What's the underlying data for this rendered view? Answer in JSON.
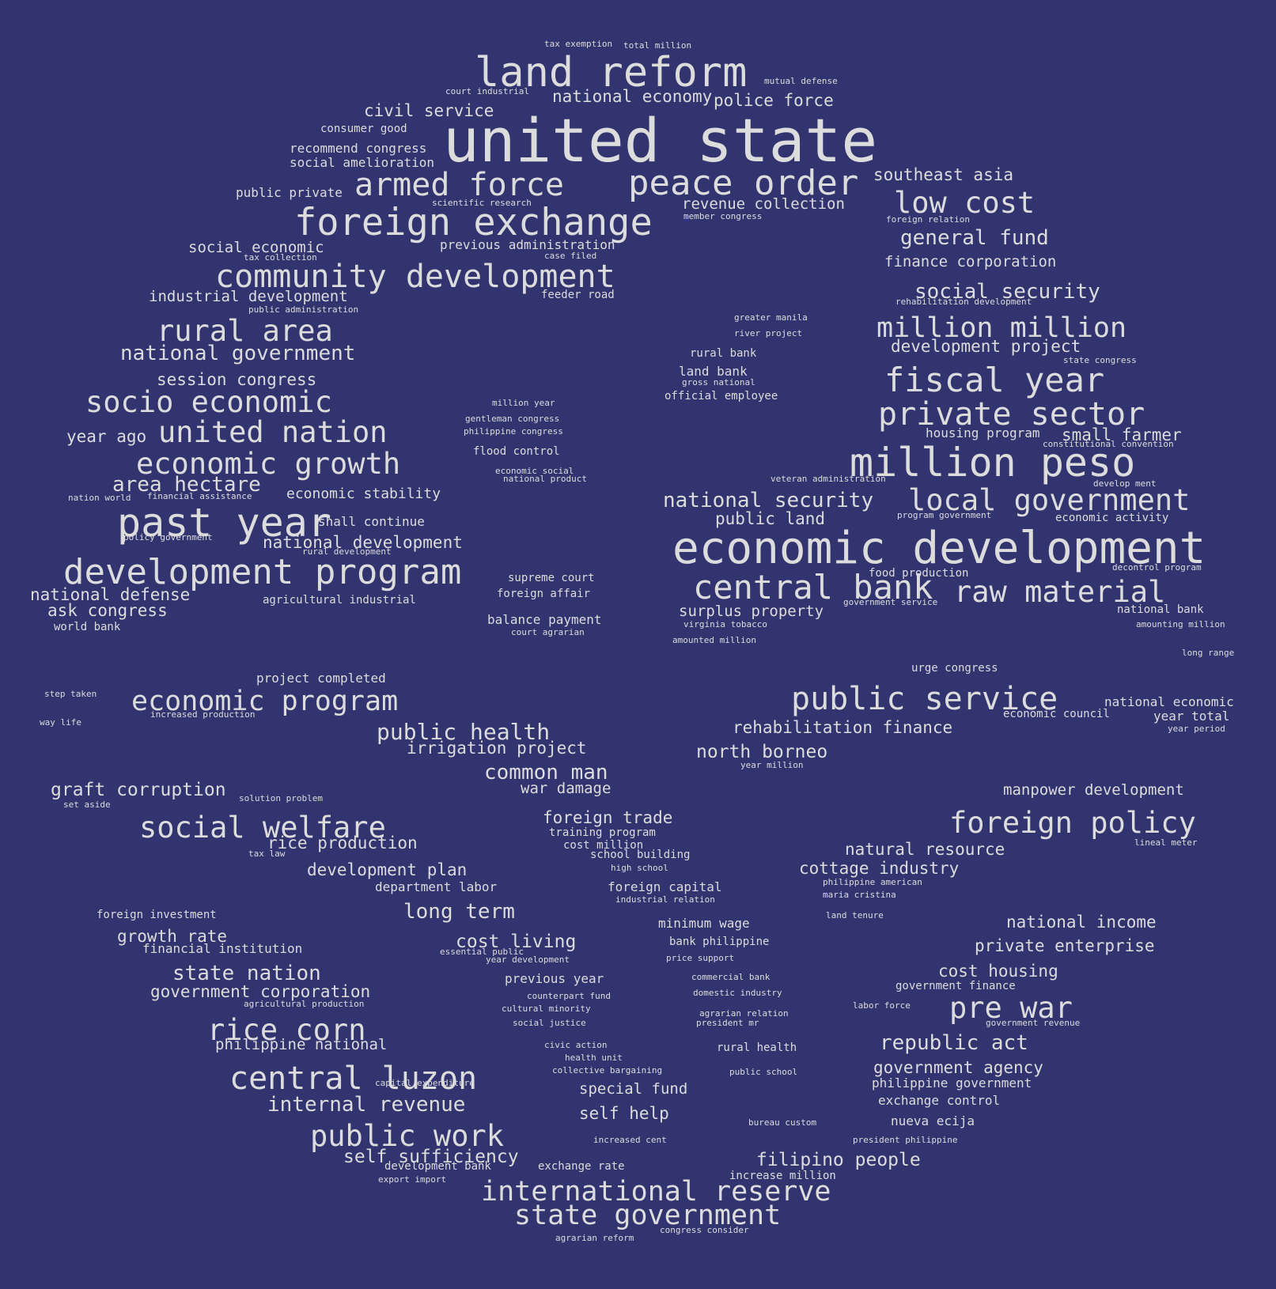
{
  "colors": {
    "background": "#323470",
    "text": "#dcdcdc"
  },
  "words": [
    "tax exemption",
    "total million",
    "land reform",
    "mutual defense",
    "court industrial",
    "national economy",
    "police force",
    "civil service",
    "united state",
    "consumer good",
    "recommend congress",
    "social amelioration",
    "southeast asia",
    "armed force",
    "peace order",
    "public private",
    "scientific research",
    "revenue collection",
    "low cost",
    "member congress",
    "foreign exchange",
    "foreign relation",
    "general fund",
    "social economic",
    "previous administration",
    "tax collection",
    "case filed",
    "finance corporation",
    "community development",
    "industrial development",
    "feeder road",
    "social security",
    "rehabilitation development",
    "public administration",
    "greater manila",
    "rural area",
    "million million",
    "river project",
    "development project",
    "national government",
    "rural bank",
    "state congress",
    "land bank",
    "session congress",
    "gross national",
    "fiscal year",
    "official employee",
    "socio economic",
    "million year",
    "private sector",
    "gentleman congress",
    "united nation",
    "year ago",
    "philippine congress",
    "housing program",
    "small farmer",
    "constitutional convention",
    "flood control",
    "economic growth",
    "million peso",
    "economic social",
    "national product",
    "veteran administration",
    "area hectare",
    "develop ment",
    "nation world",
    "financial assistance",
    "economic stability",
    "national security",
    "local government",
    "past year",
    "shall continue",
    "public land",
    "program government",
    "economic activity",
    "policy government",
    "national development",
    "rural development",
    "food production",
    "economic development",
    "development program",
    "decontrol program",
    "supreme court",
    "central bank",
    "raw material",
    "national defense",
    "foreign affair",
    "agricultural industrial",
    "government service",
    "ask congress",
    "surplus property",
    "national bank",
    "balance payment",
    "virginia tobacco",
    "amounting million",
    "world bank",
    "court agrarian",
    "amounted million",
    "long range",
    "urge congress",
    "project completed",
    "step taken",
    "economic program",
    "public service",
    "national economic",
    "increased production",
    "economic council",
    "year total",
    "way life",
    "rehabilitation finance",
    "year period",
    "public health",
    "irrigation project",
    "north borneo",
    "year million",
    "common man",
    "graft corruption",
    "war damage",
    "manpower development",
    "solution problem",
    "set aside",
    "foreign trade",
    "foreign policy",
    "social welfare",
    "training program",
    "rice production",
    "cost million",
    "natural resource",
    "lineal meter",
    "tax law",
    "school building",
    "development plan",
    "high school",
    "cottage industry",
    "philippine american",
    "department labor",
    "foreign capital",
    "maria cristina",
    "industrial relation",
    "foreign investment",
    "long term",
    "land tenure",
    "minimum wage",
    "national income",
    "growth rate",
    "cost living",
    "bank philippine",
    "financial institution",
    "private enterprise",
    "essential public",
    "year development",
    "price support",
    "state nation",
    "cost housing",
    "previous year",
    "commercial bank",
    "government finance",
    "government corporation",
    "counterpart fund",
    "domestic industry",
    "agricultural production",
    "cultural minority",
    "labor force",
    "pre war",
    "agrarian relation",
    "social justice",
    "president mr",
    "government revenue",
    "rice corn",
    "philippine national",
    "civic action",
    "rural health",
    "republic act",
    "health unit",
    "collective bargaining",
    "government agency",
    "public school",
    "central luzon",
    "capital expenditure",
    "philippine government",
    "special fund",
    "internal revenue",
    "exchange control",
    "self help",
    "bureau custom",
    "nueva ecija",
    "public work",
    "increased cent",
    "president philippine",
    "self sufficiency",
    "filipino people",
    "development bank",
    "exchange rate",
    "export import",
    "increase million",
    "international reserve",
    "state government",
    "congress consider",
    "agrarian reform"
  ]
}
